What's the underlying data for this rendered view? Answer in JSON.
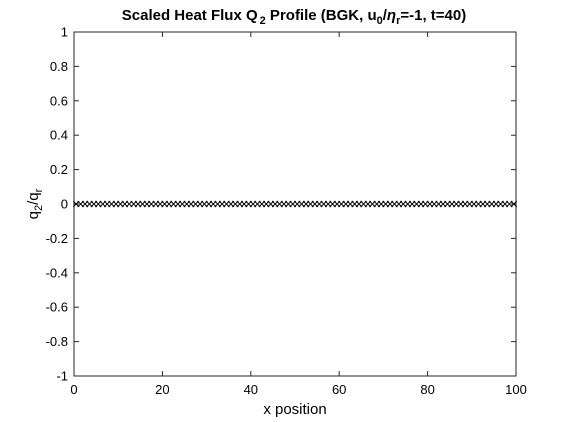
{
  "chart_data": {
    "type": "scatter",
    "title_parts": {
      "pre": "Scaled Heat Flux Q",
      "sub1": "2",
      "mid1": " Profile (BGK, u",
      "sub2": "0",
      "slash": "/",
      "eta": "η",
      "sub3": "r",
      "post": "=-1, t=40)"
    },
    "xlabel": "x position",
    "ylabel_parts": {
      "q": "q",
      "sub1": "2",
      "slash": "/q",
      "sub2": "r"
    },
    "xlim": [
      0,
      100
    ],
    "ylim": [
      -1,
      1
    ],
    "xticks": [
      0,
      20,
      40,
      60,
      80,
      100
    ],
    "yticks": [
      -1,
      -0.8,
      -0.6,
      -0.4,
      -0.2,
      0,
      0.2,
      0.4,
      0.6,
      0.8,
      1
    ],
    "ytick_labels": [
      "-1",
      "-0.8",
      "-0.6",
      "-0.4",
      "-0.2",
      "0",
      "0.2",
      "0.4",
      "0.6",
      "0.8",
      "1"
    ],
    "grid": false,
    "marker": "x",
    "marker_color": "#000000",
    "series": [
      {
        "x_start": 0.5,
        "x_end": 99.5,
        "x_step": 1,
        "y": 0
      }
    ]
  }
}
